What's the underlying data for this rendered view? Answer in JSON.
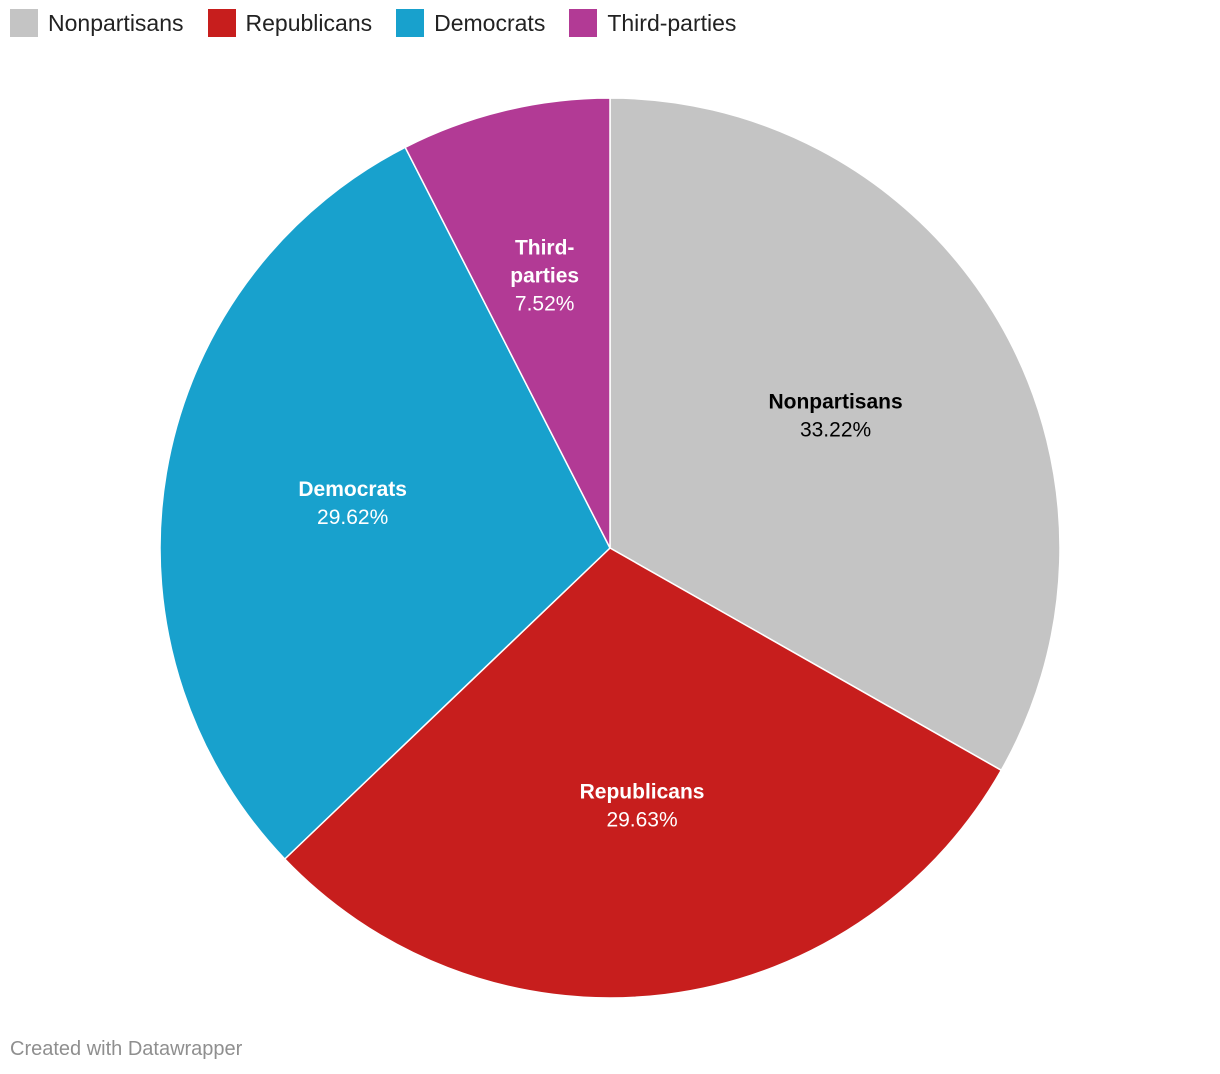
{
  "chart_data": {
    "type": "pie",
    "title": "",
    "slices": [
      {
        "name": "Nonpartisans",
        "value": 33.22,
        "value_label": "33.22%",
        "color": "#c4c4c4",
        "label_color": "#000000",
        "label_lines": [
          "Nonpartisans"
        ]
      },
      {
        "name": "Republicans",
        "value": 29.63,
        "value_label": "29.63%",
        "color": "#c71e1d",
        "label_color": "#ffffff",
        "label_lines": [
          "Republicans"
        ]
      },
      {
        "name": "Democrats",
        "value": 29.62,
        "value_label": "29.62%",
        "color": "#18a1cd",
        "label_color": "#ffffff",
        "label_lines": [
          "Democrats"
        ]
      },
      {
        "name": "Third-parties",
        "value": 7.52,
        "value_label": "7.52%",
        "color": "#b23a95",
        "label_color": "#ffffff",
        "label_lines": [
          "Third-",
          "parties"
        ]
      }
    ],
    "legend_position": "top-left",
    "start_angle": "12 o'clock",
    "direction": "clockwise"
  },
  "footer": {
    "credit": "Created with Datawrapper"
  }
}
